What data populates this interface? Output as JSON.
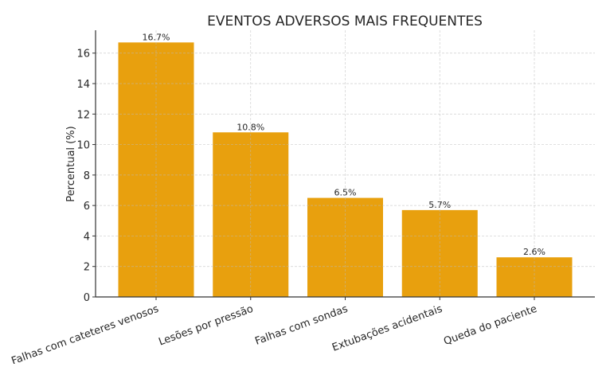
{
  "chart_data": {
    "type": "bar",
    "title": "EVENTOS ADVERSOS MAIS FREQUENTES",
    "xlabel": "",
    "ylabel": "Percentual (%)",
    "categories": [
      "Falhas com cateteres venosos",
      "Lesões por pressão",
      "Falhas com sondas",
      "Extubações acidentais",
      "Queda do paciente"
    ],
    "values": [
      16.7,
      10.8,
      6.5,
      5.7,
      2.6
    ],
    "data_labels": [
      "16.7%",
      "10.8%",
      "6.5%",
      "5.7%",
      "2.6%"
    ],
    "ylim": [
      0,
      17.5
    ],
    "yticks": [
      0,
      2,
      4,
      6,
      8,
      10,
      12,
      14,
      16
    ],
    "grid": true,
    "bar_color": "#E8A00E"
  }
}
